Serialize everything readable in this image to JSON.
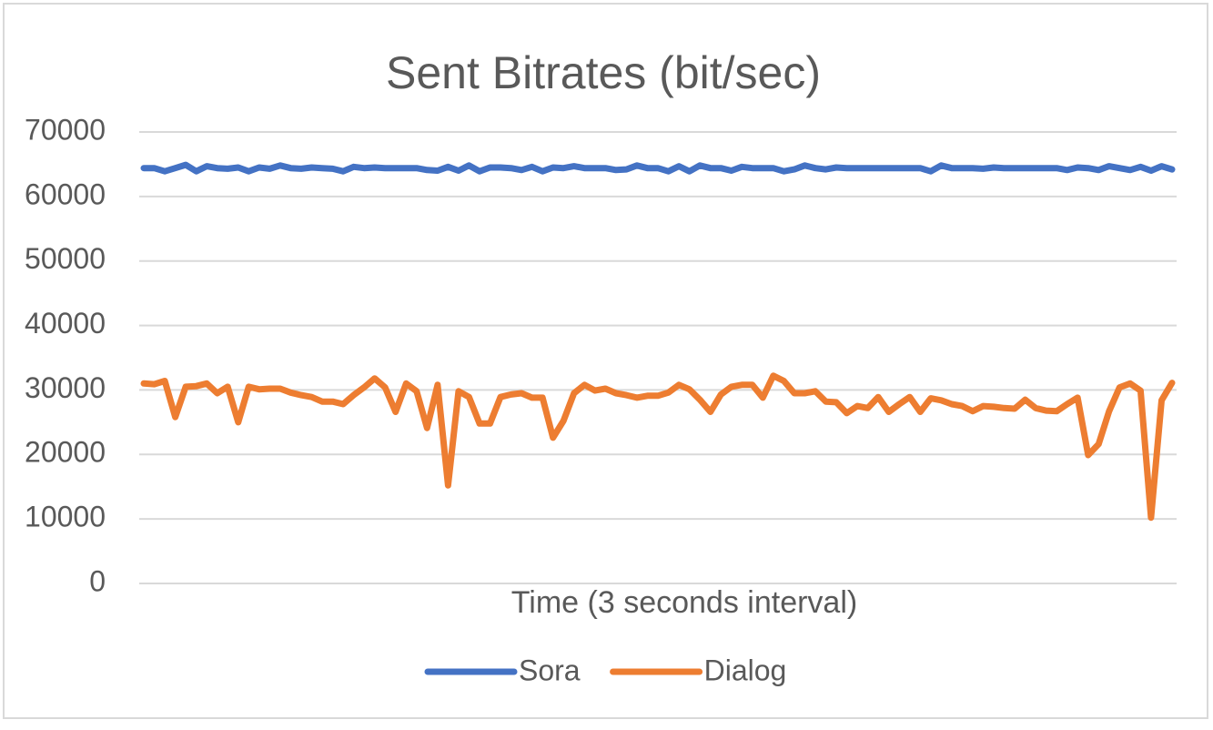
{
  "chart_data": {
    "type": "line",
    "title": "Sent Bitrates (bit/sec)",
    "x_label": "Time (3 seconds interval)",
    "categories": [
      null,
      null,
      null,
      null,
      null,
      null,
      null,
      null,
      null,
      null,
      null,
      null,
      null,
      null,
      null,
      null,
      null,
      null,
      null,
      null,
      null,
      null,
      null,
      null,
      null,
      null,
      null,
      null,
      null,
      null,
      null,
      null,
      null,
      null,
      null,
      null,
      null,
      null,
      null,
      null,
      null,
      null,
      null,
      null,
      null,
      null,
      null,
      null,
      null,
      null,
      null,
      null,
      null,
      null,
      null,
      null,
      null,
      null,
      null,
      null,
      null,
      null,
      null,
      null,
      null,
      null,
      null,
      null,
      null,
      null,
      null,
      null,
      null,
      null,
      null,
      null,
      null,
      null,
      null,
      null,
      null,
      null,
      null,
      null,
      null,
      null,
      null,
      null,
      null,
      null,
      null,
      null,
      null,
      null,
      null,
      null,
      null,
      null,
      null
    ],
    "series": [
      {
        "name": "Sora",
        "color": "#4472c4",
        "values": [
          64400,
          64400,
          63900,
          64400,
          64900,
          63900,
          64700,
          64400,
          64300,
          64500,
          63900,
          64500,
          64300,
          64800,
          64400,
          64300,
          64500,
          64400,
          64300,
          63900,
          64600,
          64400,
          64500,
          64400,
          64400,
          64400,
          64400,
          64100,
          64000,
          64600,
          64000,
          64800,
          63900,
          64500,
          64500,
          64400,
          64100,
          64600,
          63900,
          64500,
          64400,
          64700,
          64400,
          64400,
          64400,
          64100,
          64200,
          64800,
          64400,
          64400,
          63900,
          64700,
          63900,
          64800,
          64400,
          64400,
          64000,
          64600,
          64400,
          64400,
          64400,
          63900,
          64200,
          64800,
          64400,
          64200,
          64500,
          64400,
          64400,
          64400,
          64400,
          64400,
          64400,
          64400,
          64400,
          63900,
          64800,
          64400,
          64400,
          64400,
          64300,
          64500,
          64400,
          64400,
          64400,
          64400,
          64400,
          64400,
          64100,
          64500,
          64400,
          64100,
          64700,
          64400,
          64100,
          64600,
          64000,
          64700,
          64200
        ]
      },
      {
        "name": "Dialog",
        "color": "#ed7d31",
        "values": [
          31000,
          30900,
          31400,
          25800,
          30500,
          30600,
          31000,
          29500,
          30500,
          25000,
          30500,
          30100,
          30200,
          30200,
          29600,
          29200,
          28900,
          28200,
          28200,
          27800,
          29200,
          30400,
          31800,
          30400,
          26600,
          31000,
          29800,
          24100,
          30800,
          15200,
          29800,
          28900,
          24800,
          24800,
          28900,
          29300,
          29500,
          28800,
          28800,
          22600,
          25200,
          29500,
          30800,
          29900,
          30200,
          29500,
          29200,
          28800,
          29100,
          29100,
          29600,
          30800,
          30100,
          28500,
          26600,
          29300,
          30500,
          30800,
          30800,
          28800,
          32200,
          31400,
          29500,
          29500,
          29800,
          28200,
          28100,
          26400,
          27500,
          27200,
          28900,
          26600,
          27800,
          28900,
          26600,
          28700,
          28400,
          27800,
          27500,
          26700,
          27500,
          27400,
          27200,
          27100,
          28500,
          27200,
          26800,
          26700,
          27800,
          28800,
          19900,
          21600,
          26700,
          30400,
          31000,
          29900,
          10200,
          28400,
          31100
        ]
      }
    ],
    "ylim": [
      0,
      70000
    ],
    "yticks": [
      0,
      10000,
      20000,
      30000,
      40000,
      50000,
      60000,
      70000
    ],
    "grid": true,
    "legend": "bottom"
  }
}
